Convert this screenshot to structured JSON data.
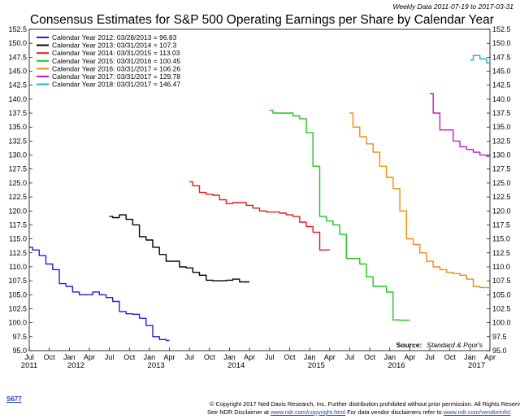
{
  "chart_data": {
    "type": "line",
    "title": "Consensus Estimates for S&P 500 Operating Earnings per Share by Calendar Year",
    "subtitle": "Weekly Data 2011-07-19 to 2017-03-31",
    "xlabel": "",
    "ylabel": "",
    "ylim": [
      95.0,
      152.5
    ],
    "xlim": [
      "2011-07",
      "2017-04"
    ],
    "y_ticks": [
      "152.5",
      "150.0",
      "147.5",
      "145.0",
      "142.5",
      "140.0",
      "137.5",
      "135.0",
      "132.5",
      "130.0",
      "127.5",
      "125.0",
      "122.5",
      "120.0",
      "117.5",
      "115.0",
      "112.5",
      "110.0",
      "107.5",
      "105.0",
      "102.5",
      "100.0",
      "97.5",
      "95.0"
    ],
    "x_ticks": [
      {
        "label": "Jul",
        "date": "2011-07"
      },
      {
        "label": "Oct",
        "date": "2011-10"
      },
      {
        "label": "Jan",
        "date": "2012-01"
      },
      {
        "label": "Apr",
        "date": "2012-04"
      },
      {
        "label": "Jul",
        "date": "2012-07"
      },
      {
        "label": "Oct",
        "date": "2012-10"
      },
      {
        "label": "Jan",
        "date": "2013-01"
      },
      {
        "label": "Apr",
        "date": "2013-04"
      },
      {
        "label": "Jul",
        "date": "2013-07"
      },
      {
        "label": "Oct",
        "date": "2013-10"
      },
      {
        "label": "Jan",
        "date": "2014-01"
      },
      {
        "label": "Apr",
        "date": "2014-04"
      },
      {
        "label": "Jul",
        "date": "2014-07"
      },
      {
        "label": "Oct",
        "date": "2014-10"
      },
      {
        "label": "Jan",
        "date": "2015-01"
      },
      {
        "label": "Apr",
        "date": "2015-04"
      },
      {
        "label": "Jul",
        "date": "2015-07"
      },
      {
        "label": "Oct",
        "date": "2015-10"
      },
      {
        "label": "Jan",
        "date": "2016-01"
      },
      {
        "label": "Apr",
        "date": "2016-04"
      },
      {
        "label": "Jul",
        "date": "2016-07"
      },
      {
        "label": "Oct",
        "date": "2016-10"
      },
      {
        "label": "Jan",
        "date": "2017-01"
      },
      {
        "label": "Apr",
        "date": "2017-04"
      }
    ],
    "x_years": [
      {
        "label": "2011",
        "date": "2011-07"
      },
      {
        "label": "2012",
        "date": "2012-02"
      },
      {
        "label": "2013",
        "date": "2013-02"
      },
      {
        "label": "2014",
        "date": "2014-02"
      },
      {
        "label": "2015",
        "date": "2015-02"
      },
      {
        "label": "2016",
        "date": "2016-02"
      },
      {
        "label": "2017",
        "date": "2017-02"
      }
    ],
    "grid": false,
    "legend_position": "top-left",
    "series": [
      {
        "name": "Calendar Year 2012:  03/28/2013 = 96.83",
        "color": "#1f1fe0",
        "x": [
          "2011-07",
          "2011-08",
          "2011-09",
          "2011-10",
          "2011-11",
          "2011-12",
          "2012-01",
          "2012-02",
          "2012-03",
          "2012-04",
          "2012-05",
          "2012-06",
          "2012-07",
          "2012-08",
          "2012-09",
          "2012-10",
          "2012-11",
          "2012-12",
          "2013-01",
          "2013-02",
          "2013-03",
          "2013-04"
        ],
        "y": [
          113.5,
          113.0,
          112.0,
          110.5,
          109.5,
          107.0,
          106.5,
          105.5,
          105.0,
          105.0,
          105.5,
          105.0,
          104.5,
          103.8,
          102.0,
          101.6,
          101.5,
          100.8,
          99.5,
          97.5,
          97.0,
          96.83
        ]
      },
      {
        "name": "Calendar Year 2013:  03/31/2014 = 107.3",
        "color": "#000000",
        "x": [
          "2012-07",
          "2012-08",
          "2012-09",
          "2012-10",
          "2012-11",
          "2012-12",
          "2013-01",
          "2013-02",
          "2013-03",
          "2013-04",
          "2013-05",
          "2013-06",
          "2013-07",
          "2013-08",
          "2013-09",
          "2013-10",
          "2013-11",
          "2013-12",
          "2014-01",
          "2014-02",
          "2014-03",
          "2014-04"
        ],
        "y": [
          119.0,
          118.8,
          119.3,
          118.5,
          117.5,
          115.4,
          114.8,
          113.5,
          112.2,
          111.0,
          111.0,
          110.0,
          109.8,
          109.0,
          108.5,
          107.6,
          107.5,
          107.5,
          107.6,
          107.8,
          107.3,
          107.3
        ]
      },
      {
        "name": "Calendar Year 2014:  03/31/2015 = 113.03",
        "color": "#e81a1a",
        "x": [
          "2013-07",
          "2013-08",
          "2013-09",
          "2013-10",
          "2013-11",
          "2013-12",
          "2014-01",
          "2014-02",
          "2014-03",
          "2014-04",
          "2014-05",
          "2014-06",
          "2014-07",
          "2014-08",
          "2014-09",
          "2014-10",
          "2014-11",
          "2014-12",
          "2015-01",
          "2015-02",
          "2015-03",
          "2015-04"
        ],
        "y": [
          125.2,
          124.5,
          123.3,
          123.0,
          122.8,
          122.0,
          121.3,
          121.5,
          121.5,
          121.0,
          120.5,
          120.0,
          119.8,
          119.8,
          119.6,
          119.3,
          119.0,
          118.0,
          117.2,
          116.2,
          113.0,
          113.03
        ]
      },
      {
        "name": "Calendar Year 2015:  03/31/2016 = 100.45",
        "color": "#22c41a",
        "x": [
          "2014-07",
          "2014-08",
          "2014-09",
          "2014-10",
          "2014-11",
          "2014-12",
          "2015-01",
          "2015-02",
          "2015-03",
          "2015-04",
          "2015-05",
          "2015-06",
          "2015-07",
          "2015-08",
          "2015-09",
          "2015-10",
          "2015-11",
          "2015-12",
          "2016-01",
          "2016-02",
          "2016-03",
          "2016-04"
        ],
        "y": [
          138.0,
          137.5,
          137.5,
          137.5,
          137.0,
          136.5,
          134.0,
          128.0,
          119.0,
          118.2,
          117.5,
          115.8,
          111.5,
          111.5,
          110.5,
          108.2,
          106.5,
          106.5,
          105.5,
          100.5,
          100.45,
          100.45
        ]
      },
      {
        "name": "Calendar Year 2016:  03/31/2017 = 106.26",
        "color": "#f28a0a",
        "x": [
          "2015-07",
          "2015-08",
          "2015-09",
          "2015-10",
          "2015-11",
          "2015-12",
          "2016-01",
          "2016-02",
          "2016-03",
          "2016-04",
          "2016-05",
          "2016-06",
          "2016-07",
          "2016-08",
          "2016-09",
          "2016-10",
          "2016-11",
          "2016-12",
          "2017-01",
          "2017-02",
          "2017-03",
          "2017-04"
        ],
        "y": [
          137.5,
          135.0,
          133.3,
          132.0,
          130.5,
          128.0,
          126.0,
          124.0,
          120.0,
          115.0,
          114.0,
          112.5,
          111.0,
          110.0,
          109.5,
          109.0,
          108.8,
          108.5,
          107.8,
          106.5,
          106.3,
          106.26
        ]
      },
      {
        "name": "Calendar Year 2017:  03/31/2017 = 129.78",
        "color": "#c21ac2",
        "x": [
          "2016-07",
          "2016-08",
          "2016-09",
          "2016-10",
          "2016-11",
          "2016-12",
          "2017-01",
          "2017-02",
          "2017-03",
          "2017-04"
        ],
        "y": [
          141.0,
          137.5,
          134.5,
          134.5,
          132.5,
          131.5,
          131.0,
          130.5,
          130.0,
          129.78
        ]
      },
      {
        "name": "Calendar Year 2018:  03/31/2017 = 146.47",
        "color": "#12b7b7",
        "x": [
          "2017-01",
          "2017-02",
          "2017-03",
          "2017-04"
        ],
        "y": [
          147.0,
          147.8,
          147.2,
          146.47
        ]
      }
    ]
  },
  "source_label": "Source:",
  "source_value": "Standard & Poor's",
  "chart_id": "S677",
  "footer": {
    "line1": "© Copyright 2017 Ned Davis Research, Inc. Further distribution prohibited without prior permission. All Rights Reserved.",
    "line2_a": "See NDR Disclaimer at ",
    "line2_link1": "www.ndr.com/copyright.html",
    "line2_b": "  For data vendor disclaimers refer to ",
    "line2_link2": "www.ndr.com/vendorinfo/"
  }
}
